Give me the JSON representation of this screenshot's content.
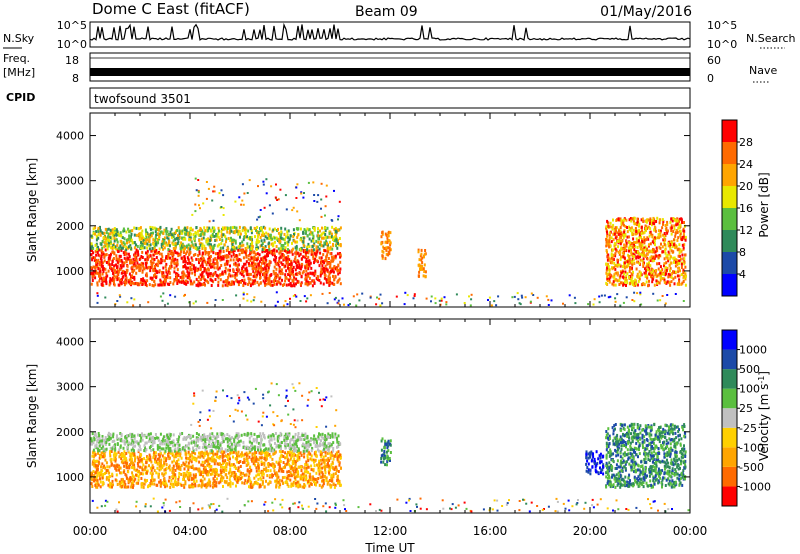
{
  "header": {
    "station": "Dome C East (fitACF)",
    "beam": "Beam 09",
    "date": "01/May/2016"
  },
  "strips": {
    "nsky_label": "N.Sky",
    "nsky_ticks": [
      "10^5",
      "10^0"
    ],
    "nsearch_label": "N.Search",
    "nsearch_ticks": [
      "10^5",
      "10^0"
    ],
    "freq_label": "Freq.",
    "freq_unit": "[MHz]",
    "freq_ticks": [
      "18",
      "8"
    ],
    "nave_label": "Nave",
    "nave_ticks": [
      "60",
      "0"
    ],
    "cpid_label": "CPID",
    "cpid_value": "twofsound 3501"
  },
  "x_axis": {
    "label": "Time UT",
    "ticks": [
      "00:00",
      "04:00",
      "08:00",
      "12:00",
      "16:00",
      "20:00",
      "00:00"
    ]
  },
  "colors": {
    "power": [
      "#0000ff",
      "#1c4aa8",
      "#2f8a5a",
      "#5bbf3f",
      "#e8e800",
      "#ffa500",
      "#ff6a00",
      "#ff0000"
    ],
    "velocity": [
      "#0000ff",
      "#1c4aa8",
      "#2f8a5a",
      "#5bbf3f",
      "#c0c0c0",
      "#ffd000",
      "#ffa500",
      "#ff6a00",
      "#ff0000"
    ]
  },
  "chart_data": [
    {
      "type": "heatmap",
      "ylabel": "Slant Range [km]",
      "xlabel": "",
      "xlim_hours": [
        0,
        24
      ],
      "ylim": [
        200,
        4500
      ],
      "yticks": [
        1000,
        2000,
        3000,
        4000
      ],
      "colorbar": {
        "label": "Power [dB]",
        "range": [
          0,
          32
        ],
        "ticks": [
          "4",
          "8",
          "12",
          "16",
          "20",
          "24",
          "28"
        ]
      },
      "regions": [
        {
          "t": [
            0.0,
            10.0
          ],
          "range_km": [
            700,
            1500
          ],
          "level": "28+"
        },
        {
          "t": [
            0.0,
            10.0
          ],
          "range_km": [
            1500,
            2000
          ],
          "level": "12-20"
        },
        {
          "t": [
            11.6,
            12.0
          ],
          "range_km": [
            1300,
            1900
          ],
          "level": "20-24"
        },
        {
          "t": [
            13.1,
            13.4
          ],
          "range_km": [
            900,
            1500
          ],
          "level": "24"
        },
        {
          "t": [
            20.6,
            23.8
          ],
          "range_km": [
            700,
            2200
          ],
          "level": "20-28"
        }
      ]
    },
    {
      "type": "heatmap",
      "ylabel": "Slant Range [km]",
      "xlabel": "Time UT",
      "xlim_hours": [
        0,
        24
      ],
      "ylim": [
        200,
        4500
      ],
      "yticks": [
        1000,
        2000,
        3000,
        4000
      ],
      "colorbar": {
        "label": "Velocity [m s^-1]",
        "ticks": [
          "1000",
          "500",
          "100",
          "25",
          "-25",
          "-100",
          "-500",
          "-1000"
        ]
      },
      "regions": [
        {
          "t": [
            0.0,
            10.0
          ],
          "range_km": [
            800,
            1600
          ],
          "level": "-100"
        },
        {
          "t": [
            0.0,
            10.0
          ],
          "range_km": [
            1600,
            2000
          ],
          "level": "25"
        },
        {
          "t": [
            11.6,
            12.0
          ],
          "range_km": [
            1300,
            1900
          ],
          "level": "100"
        },
        {
          "t": [
            19.8,
            20.5
          ],
          "range_km": [
            1100,
            1600
          ],
          "level": "1000"
        },
        {
          "t": [
            20.6,
            23.8
          ],
          "range_km": [
            800,
            2200
          ],
          "level": "100"
        }
      ]
    }
  ]
}
